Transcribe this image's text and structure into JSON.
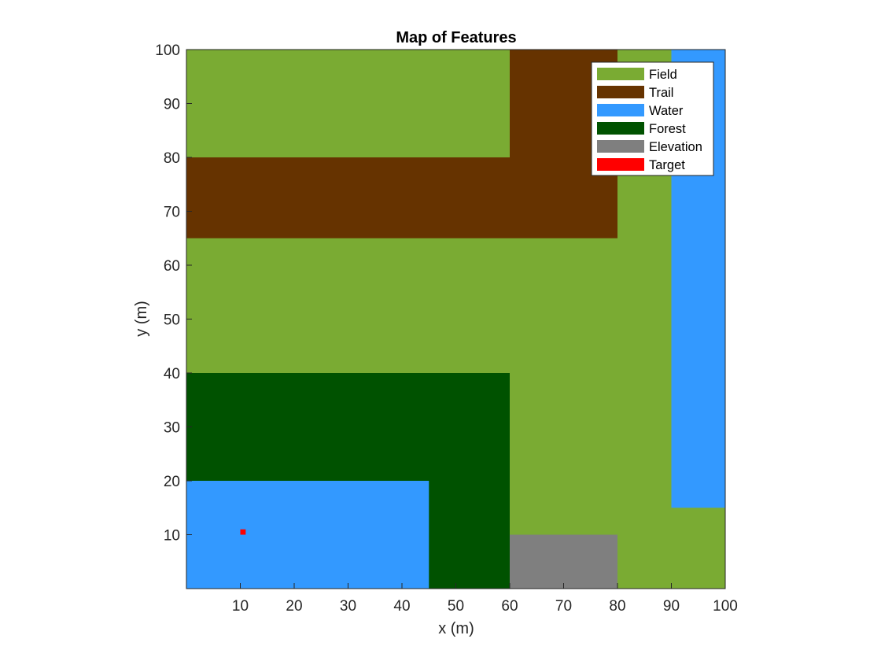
{
  "chart_data": {
    "type": "heatmap",
    "title": "Map of Features",
    "xlabel": "x (m)",
    "ylabel": "y (m)",
    "xlim": [
      0,
      100
    ],
    "ylim": [
      0,
      100
    ],
    "xticks": [
      10,
      20,
      30,
      40,
      50,
      60,
      70,
      80,
      90,
      100
    ],
    "yticks": [
      10,
      20,
      30,
      40,
      50,
      60,
      70,
      80,
      90,
      100
    ],
    "grid": false,
    "legend_position": "top-right",
    "categories": [
      {
        "name": "Field",
        "color": "#7aab33"
      },
      {
        "name": "Trail",
        "color": "#663300"
      },
      {
        "name": "Water",
        "color": "#3399ff"
      },
      {
        "name": "Forest",
        "color": "#005200"
      },
      {
        "name": "Elevation",
        "color": "#7f7f7f"
      },
      {
        "name": "Target",
        "color": "#ff0000"
      }
    ],
    "regions": [
      {
        "feature": "Field",
        "x": [
          0,
          100
        ],
        "y": [
          0,
          100
        ]
      },
      {
        "feature": "Trail",
        "x": [
          0,
          80
        ],
        "y": [
          65,
          80
        ]
      },
      {
        "feature": "Trail",
        "x": [
          60,
          80
        ],
        "y": [
          80,
          100
        ]
      },
      {
        "feature": "Water",
        "x": [
          90,
          100
        ],
        "y": [
          15,
          100
        ]
      },
      {
        "feature": "Forest",
        "x": [
          0,
          60
        ],
        "y": [
          0,
          40
        ]
      },
      {
        "feature": "Water",
        "x": [
          0,
          45
        ],
        "y": [
          0,
          20
        ]
      },
      {
        "feature": "Elevation",
        "x": [
          60,
          80
        ],
        "y": [
          0,
          10
        ]
      },
      {
        "feature": "Target",
        "x": [
          10,
          11
        ],
        "y": [
          10,
          11
        ]
      }
    ]
  }
}
